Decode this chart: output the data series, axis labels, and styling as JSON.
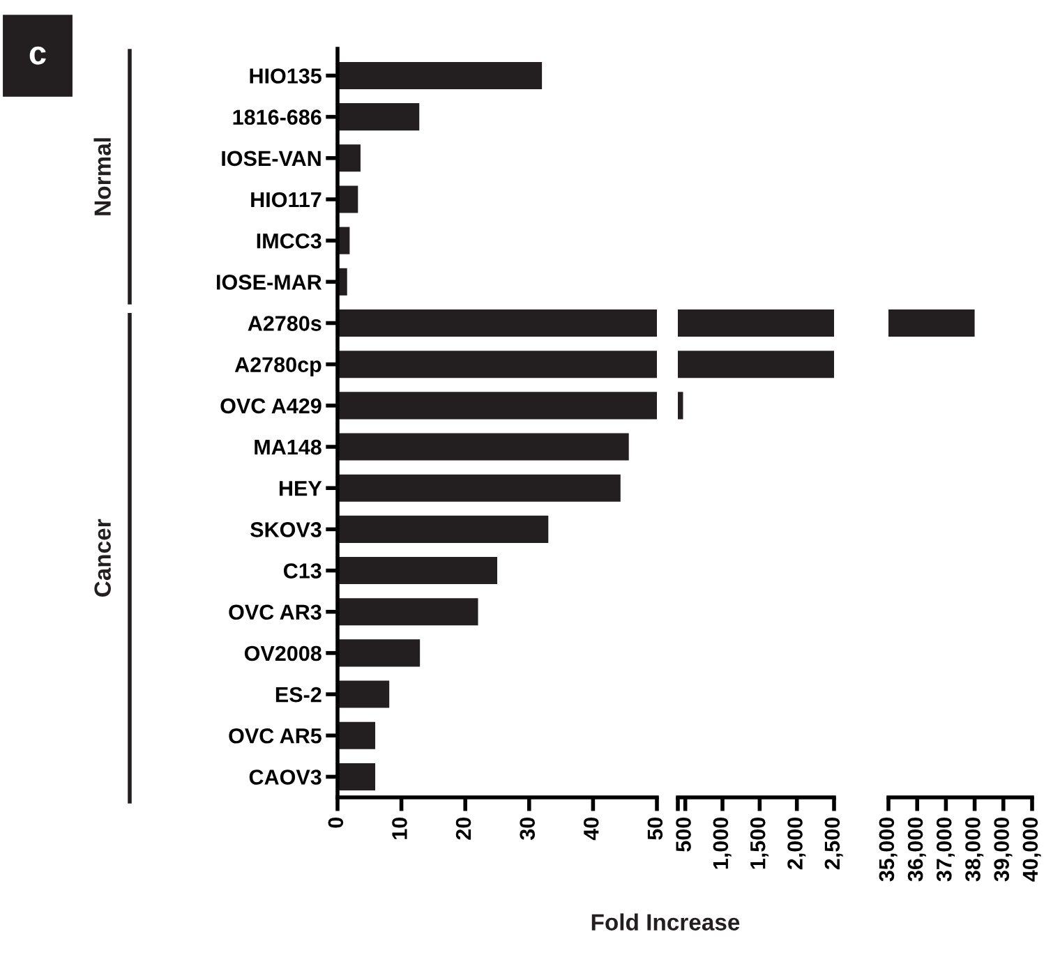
{
  "chart_data": [
    {
      "type": "bar",
      "orientation": "horizontal",
      "color": "#231f20",
      "categories": [
        "HIO135",
        "1816-686",
        "IOSE-VAN",
        "HIO117",
        "IMCC3",
        "IOSE-MAR",
        "A2780s",
        "A2780cp",
        "OVC A429",
        "MA148",
        "HEY",
        "SKOV3",
        "C13",
        "OVC AR3",
        "OV2008",
        "ES-2",
        "OVC AR5",
        "CAOV3"
      ],
      "values": [
        32,
        12.8,
        3.6,
        3.2,
        1.9,
        1.5,
        50,
        50,
        50,
        45.6,
        44.3,
        33,
        25,
        22,
        12.9,
        8.1,
        5.9,
        5.9
      ],
      "xlim": [
        0,
        50
      ],
      "xticks": [
        0,
        10,
        20,
        30,
        40,
        50
      ],
      "xlabel": "Fold Increase",
      "annotations": [
        "c",
        "Normal",
        "Cancer"
      ]
    },
    {
      "type": "bar",
      "orientation": "horizontal",
      "color": "#231f20",
      "tick_labels": "x",
      "categories": [
        null,
        null,
        null,
        null,
        null,
        null,
        null,
        null,
        null,
        null,
        null,
        null,
        null,
        null,
        null,
        null,
        null,
        null
      ],
      "values": [
        null,
        null,
        null,
        null,
        null,
        null,
        2500,
        2500,
        470,
        null,
        null,
        null,
        null,
        null,
        null,
        null,
        null,
        null
      ],
      "xlim": [
        400,
        2500
      ],
      "xticks": [
        {
          "value": 400,
          "label": null
        },
        500,
        {
          "value": 1000,
          "label": "1,000"
        },
        {
          "value": 1500,
          "label": "1,500"
        },
        {
          "value": 2000,
          "label": "2,000"
        },
        {
          "value": 2500,
          "label": "2,500"
        }
      ]
    },
    {
      "type": "bar",
      "orientation": "horizontal",
      "color": "#231f20",
      "tick_labels": "x",
      "categories": [
        null,
        null,
        null,
        null,
        null,
        null,
        null,
        null,
        null,
        null,
        null,
        null,
        null,
        null,
        null,
        null,
        null,
        null
      ],
      "values": [
        null,
        null,
        null,
        null,
        null,
        null,
        38000,
        null,
        null,
        null,
        null,
        null,
        null,
        null,
        null,
        null,
        null,
        null
      ],
      "xlim": [
        35000,
        40000
      ],
      "xticks": [
        {
          "value": 35000,
          "label": "35,000"
        },
        {
          "value": 36000,
          "label": "36,000"
        },
        {
          "value": 37000,
          "label": "37,000"
        },
        {
          "value": 38000,
          "label": "38,000"
        },
        {
          "value": 39000,
          "label": "39,000"
        },
        {
          "value": 40000,
          "label": "40,000"
        }
      ]
    }
  ]
}
